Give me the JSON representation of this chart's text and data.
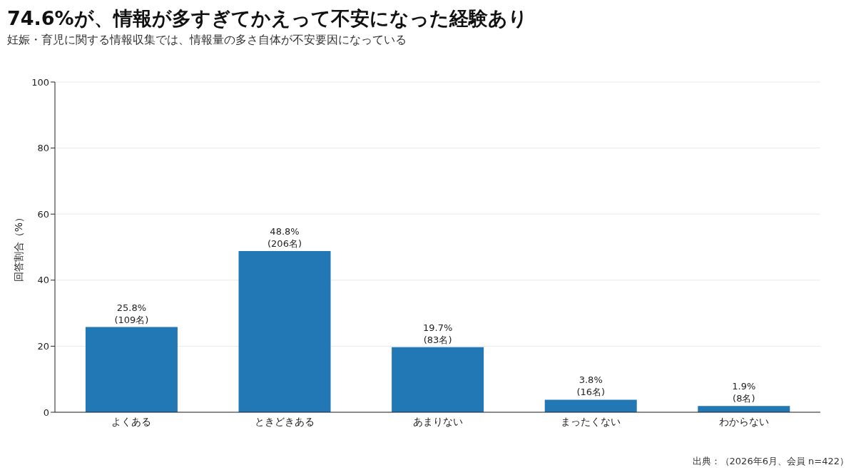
{
  "chart_data": {
    "type": "bar",
    "title": "74.6%が、情報が多すぎてかえって不安になった経験あり",
    "subtitle": "妊娠・育児に関する情報収集では、情報量の多さ自体が不安要因になっている",
    "ylabel": "回答割合（%）",
    "categories": [
      "よくある",
      "ときどきある",
      "あまりない",
      "まったくない",
      "わからない"
    ],
    "values": [
      25.8,
      48.8,
      19.7,
      3.8,
      1.9
    ],
    "value_labels": [
      "25.8%\n(109名)",
      "48.8%\n(206名)",
      "19.7%\n(83名)",
      "3.8%\n(16名)",
      "1.9%\n(8名)"
    ],
    "color": "#2277b5",
    "ylim": [
      0,
      100
    ],
    "yticks": [
      0,
      20,
      40,
      60,
      80,
      100
    ],
    "grid": "y",
    "legend": false,
    "annotations": [
      "出典：（2026年6月、会員 n=422）"
    ]
  }
}
